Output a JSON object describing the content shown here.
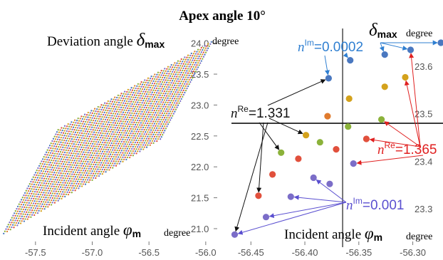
{
  "title": "Apex angle 10°",
  "chart_data": [
    {
      "type": "scatter",
      "ylabel": "Deviation angle δmax",
      "ylabel_text": "Deviation angle ",
      "ylabel_symbol": "δ",
      "ylabel_sub": "max",
      "yunit": "degree",
      "xlabel": "Incident angle φm",
      "xlabel_text": "Incident angle ",
      "xlabel_symbol": "φ",
      "xlabel_sub": "m",
      "xunit": "degree",
      "xlim": [
        -57.8,
        -55.93
      ],
      "ylim": [
        20.85,
        24.1
      ],
      "xticks": [
        "-57.5",
        "-57.0",
        "-56.5",
        "-56.0"
      ],
      "xtick_values": [
        -57.5,
        -57.0,
        -56.5,
        -56.0
      ],
      "yticks": [
        "21.0",
        "21.5",
        "22.0",
        "22.5",
        "23.0",
        "23.5",
        "24.0"
      ],
      "ytick_values": [
        21.0,
        21.5,
        22.0,
        22.5,
        23.0,
        23.5,
        24.0
      ],
      "region_vertices": [
        {
          "x": -57.78,
          "y": 20.92
        },
        {
          "x": -56.4,
          "y": 22.45
        },
        {
          "x": -55.95,
          "y": 24.02
        },
        {
          "x": -57.3,
          "y": 22.6
        }
      ],
      "series_colors": [
        "#4a78c0",
        "#e07b2e",
        "#8bb23a",
        "#e1503c",
        "#7b6dc8",
        "#d4a21c"
      ]
    },
    {
      "type": "scatter",
      "ylabel": "δmax",
      "ylabel_symbol": "δ",
      "ylabel_sub": "max",
      "yunit": "degree",
      "xlabel": "Incident angle φm",
      "xlabel_text": "Incident angle ",
      "xlabel_symbol": "φ",
      "xlabel_sub": "m",
      "xunit": "degree",
      "xlim": [
        -56.468,
        -56.272
      ],
      "ylim": [
        23.235,
        23.665
      ],
      "xticks": [
        "-56.45",
        "-56.40",
        "-56.35",
        "-56.30"
      ],
      "xtick_values": [
        -56.45,
        -56.4,
        -56.35,
        -56.3
      ],
      "yticks": [
        "23.3",
        "23.4",
        "23.5",
        "23.6"
      ],
      "ytick_values": [
        23.3,
        23.4,
        23.5,
        23.6
      ],
      "reference_lines": {
        "x": -56.365,
        "y": 23.48
      },
      "points": [
        {
          "x": -56.465,
          "y": 23.245,
          "color": "#7b6dc8"
        },
        {
          "x": -56.443,
          "y": 23.327,
          "color": "#e1503c"
        },
        {
          "x": -56.436,
          "y": 23.282,
          "color": "#7b6dc8"
        },
        {
          "x": -56.43,
          "y": 23.372,
          "color": "#e1503c"
        },
        {
          "x": -56.422,
          "y": 23.418,
          "color": "#8bb23a"
        },
        {
          "x": -56.413,
          "y": 23.325,
          "color": "#7b6dc8"
        },
        {
          "x": -56.406,
          "y": 23.405,
          "color": "#e1503c"
        },
        {
          "x": -56.399,
          "y": 23.455,
          "color": "#d4a21c"
        },
        {
          "x": -56.392,
          "y": 23.365,
          "color": "#7b6dc8"
        },
        {
          "x": -56.386,
          "y": 23.44,
          "color": "#8bb23a"
        },
        {
          "x": -56.379,
          "y": 23.495,
          "color": "#e07b2e"
        },
        {
          "x": -56.378,
          "y": 23.575,
          "color": "#4a78c0"
        },
        {
          "x": -56.377,
          "y": 23.352,
          "color": "#7b6dc8"
        },
        {
          "x": -56.371,
          "y": 23.425,
          "color": "#e1503c"
        },
        {
          "x": -56.36,
          "y": 23.473,
          "color": "#8bb23a"
        },
        {
          "x": -56.359,
          "y": 23.532,
          "color": "#d4a21c"
        },
        {
          "x": -56.358,
          "y": 23.613,
          "color": "#4a78c0"
        },
        {
          "x": -56.355,
          "y": 23.395,
          "color": "#7b6dc8"
        },
        {
          "x": -56.343,
          "y": 23.447,
          "color": "#e1503c"
        },
        {
          "x": -56.329,
          "y": 23.488,
          "color": "#8bb23a"
        },
        {
          "x": -56.326,
          "y": 23.557,
          "color": "#d4a21c"
        },
        {
          "x": -56.326,
          "y": 23.625,
          "color": "#4a78c0"
        },
        {
          "x": -56.307,
          "y": 23.577,
          "color": "#d4a21c"
        },
        {
          "x": -56.302,
          "y": 23.635,
          "color": "#4a78c0"
        },
        {
          "x": -56.274,
          "y": 23.65,
          "color": "#4a78c0"
        }
      ],
      "annotations": [
        {
          "label": "n",
          "sup": "Im",
          "value": "=0.0002",
          "color": "#2f7fd1",
          "anchor": {
            "x": -56.468,
            "y": 23.617
          },
          "targets": [
            {
              "x": -56.378,
              "y": 23.575
            },
            {
              "x": -56.358,
              "y": 23.613
            },
            {
              "x": -56.326,
              "y": 23.625
            },
            {
              "x": -56.302,
              "y": 23.635
            },
            {
              "x": -56.274,
              "y": 23.65
            }
          ]
        },
        {
          "label": "n",
          "sup": "Re",
          "value": "=1.331",
          "color": "#111111",
          "anchor": {
            "x": -56.468,
            "y": 23.525
          },
          "targets": [
            {
              "x": -56.378,
              "y": 23.575
            },
            {
              "x": -56.399,
              "y": 23.455
            },
            {
              "x": -56.422,
              "y": 23.418
            },
            {
              "x": -56.443,
              "y": 23.327
            },
            {
              "x": -56.465,
              "y": 23.245
            }
          ]
        },
        {
          "label": "n",
          "sup": "Re",
          "value": "=1.365",
          "color": "#e02020",
          "anchor": {
            "x": -56.328,
            "y": 23.442
          },
          "targets": [
            {
              "x": -56.343,
              "y": 23.447
            },
            {
              "x": -56.329,
              "y": 23.488
            },
            {
              "x": -56.307,
              "y": 23.577
            },
            {
              "x": -56.302,
              "y": 23.635
            },
            {
              "x": -56.355,
              "y": 23.395
            }
          ]
        },
        {
          "label": "n",
          "sup": "Im",
          "value": "=0.001",
          "color": "#5a4fd0",
          "anchor": {
            "x": -56.363,
            "y": 23.302
          },
          "targets": [
            {
              "x": -56.392,
              "y": 23.365
            },
            {
              "x": -56.413,
              "y": 23.325
            },
            {
              "x": -56.436,
              "y": 23.282
            },
            {
              "x": -56.465,
              "y": 23.245
            }
          ]
        }
      ]
    }
  ]
}
